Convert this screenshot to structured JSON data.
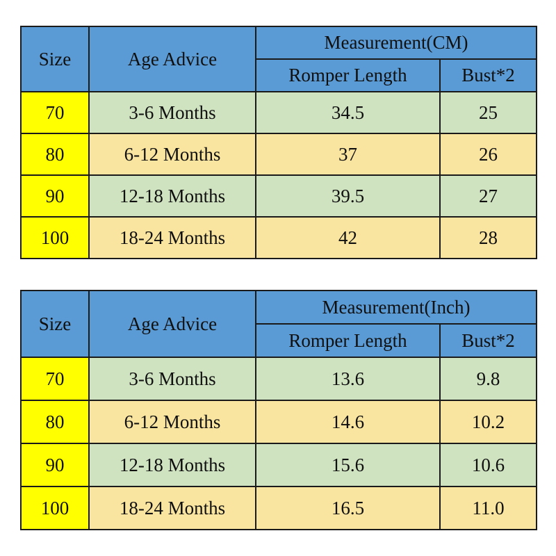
{
  "colors": {
    "page_bg": "#FFFFFF",
    "header_bg": "#5B9BD5",
    "size_col_bg": "#FFFF00",
    "row_green_bg": "#CFE3C1",
    "row_tan_bg": "#FAE5A0",
    "border": "#1A1A1A",
    "text": "#101010"
  },
  "chart_data": [
    {
      "type": "table",
      "title": "Measurement(CM)",
      "header": {
        "size": "Size",
        "age": "Age Advice",
        "measurement": "Measurement(CM)",
        "sub1": "Romper Length",
        "sub2": "Bust*2"
      },
      "rows": [
        {
          "size": "70",
          "age": "3-6 Months",
          "length": "34.5",
          "bust": "25"
        },
        {
          "size": "80",
          "age": "6-12 Months",
          "length": "37",
          "bust": "26"
        },
        {
          "size": "90",
          "age": "12-18 Months",
          "length": "39.5",
          "bust": "27"
        },
        {
          "size": "100",
          "age": "18-24 Months",
          "length": "42",
          "bust": "28"
        }
      ]
    },
    {
      "type": "table",
      "title": "Measurement(Inch)",
      "header": {
        "size": "Size",
        "age": "Age Advice",
        "measurement": "Measurement(Inch)",
        "sub1": "Romper Length",
        "sub2": "Bust*2"
      },
      "rows": [
        {
          "size": "70",
          "age": "3-6 Months",
          "length": "13.6",
          "bust": "9.8"
        },
        {
          "size": "80",
          "age": "6-12 Months",
          "length": "14.6",
          "bust": "10.2"
        },
        {
          "size": "90",
          "age": "12-18 Months",
          "length": "15.6",
          "bust": "10.6"
        },
        {
          "size": "100",
          "age": "18-24 Months",
          "length": "16.5",
          "bust": "11.0"
        }
      ]
    }
  ]
}
